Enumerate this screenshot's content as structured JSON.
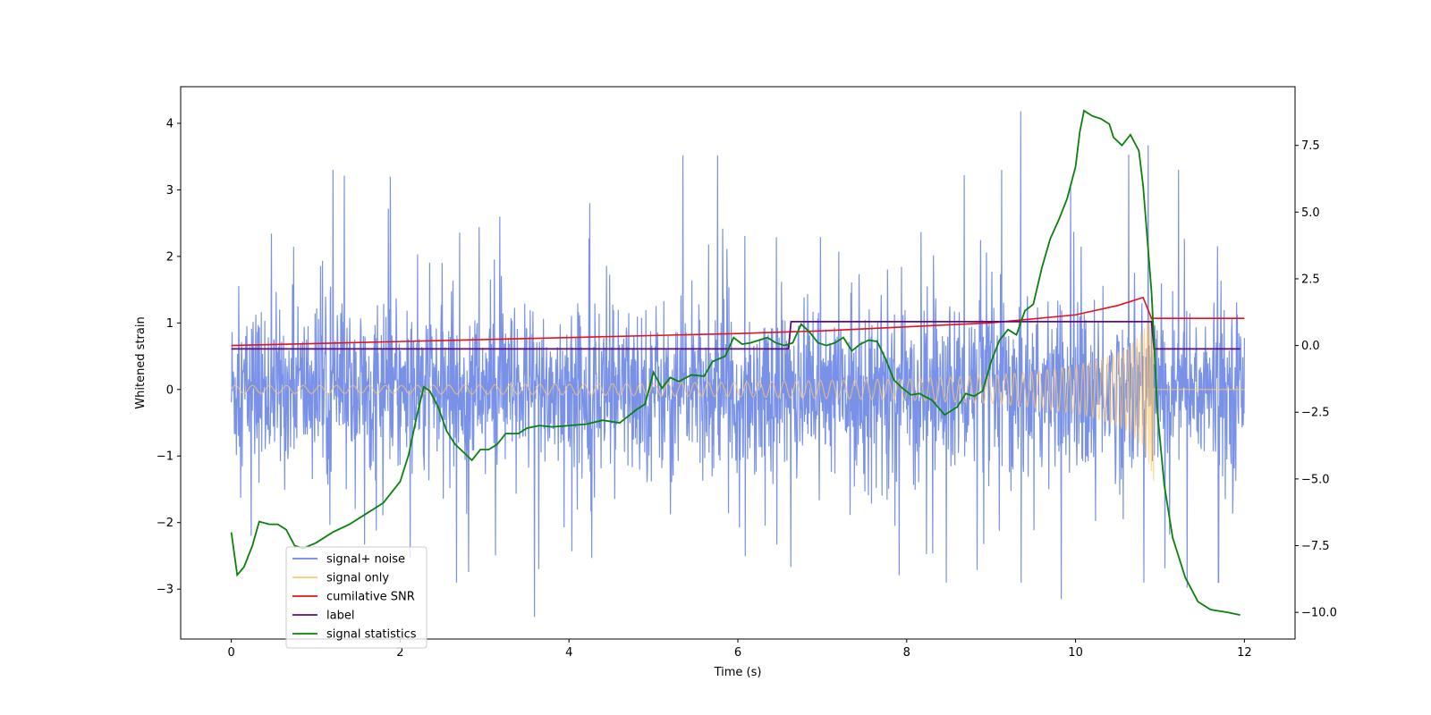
{
  "chart_data": {
    "type": "line",
    "title": "",
    "xlabel": "Time (s)",
    "ylabel": "Whitened strain",
    "y2label": "",
    "xlim": [
      -0.6,
      12.6
    ],
    "ylim": [
      -3.75,
      4.55
    ],
    "y2lim": [
      -11.0,
      9.7
    ],
    "xticks": [
      0,
      2,
      4,
      6,
      8,
      10,
      12
    ],
    "xtick_labels": [
      "0",
      "2",
      "4",
      "6",
      "8",
      "10",
      "12"
    ],
    "yticks": [
      -3,
      -2,
      -1,
      0,
      1,
      2,
      3,
      4
    ],
    "ytick_labels": [
      "−3",
      "−2",
      "−1",
      "0",
      "1",
      "2",
      "3",
      "4"
    ],
    "y2ticks": [
      -10.0,
      -7.5,
      -5.0,
      -2.5,
      0.0,
      2.5,
      5.0,
      7.5
    ],
    "y2tick_labels": [
      "−10.0",
      "−7.5",
      "−5.0",
      "−2.5",
      "0.0",
      "2.5",
      "5.0",
      "7.5"
    ],
    "grid": false,
    "legend_position": "lower-left",
    "legend": [
      {
        "label": "signal+ noise",
        "color": "#6a86e6"
      },
      {
        "label": "signal only",
        "color": "#ffc866"
      },
      {
        "label": "cumilative SNR",
        "color": "#e8101e"
      },
      {
        "label": "label",
        "color": "#5c0d82"
      },
      {
        "label": "signal statistics",
        "color": "#0a820a"
      }
    ],
    "series": [
      {
        "name": "signal+ noise",
        "axis": "left",
        "color": "#6a86e6",
        "x_range": [
          0,
          12
        ],
        "noise_sigma": 1.0,
        "peaks": [
          {
            "x": 9.35,
            "y": 4.18
          },
          {
            "x": 10.86,
            "y": 3.67
          },
          {
            "x": 10.63,
            "y": 3.53
          },
          {
            "x": 5.35,
            "y": 3.52
          },
          {
            "x": 5.76,
            "y": 3.52
          },
          {
            "x": 3.59,
            "y": -3.42
          },
          {
            "x": 11.32,
            "y": -2.98
          },
          {
            "x": 9.83,
            "y": -3.15
          }
        ]
      },
      {
        "name": "signal only",
        "axis": "left",
        "color": "#ffc866",
        "x_range": [
          0,
          12
        ],
        "merger_time": 10.93,
        "envelope_points": [
          [
            0.0,
            0.06
          ],
          [
            2.0,
            0.06
          ],
          [
            4.0,
            0.08
          ],
          [
            6.0,
            0.11
          ],
          [
            8.0,
            0.16
          ],
          [
            9.0,
            0.21
          ],
          [
            9.5,
            0.27
          ],
          [
            10.0,
            0.36
          ],
          [
            10.4,
            0.5
          ],
          [
            10.6,
            0.62
          ],
          [
            10.8,
            0.86
          ],
          [
            10.9,
            1.25
          ],
          [
            10.93,
            1.55
          ]
        ]
      },
      {
        "name": "cumilative SNR",
        "axis": "right",
        "color": "#e8101e",
        "points": [
          [
            0.0,
            0.0
          ],
          [
            2.0,
            0.15
          ],
          [
            4.0,
            0.3
          ],
          [
            6.0,
            0.45
          ],
          [
            7.0,
            0.55
          ],
          [
            8.0,
            0.7
          ],
          [
            9.0,
            0.85
          ],
          [
            10.0,
            1.15
          ],
          [
            10.5,
            1.5
          ],
          [
            10.8,
            1.8
          ],
          [
            10.9,
            1.02
          ],
          [
            11.5,
            1.02
          ],
          [
            12.0,
            1.02
          ]
        ]
      },
      {
        "name": "label",
        "axis": "left",
        "color": "#5c0d82",
        "points": [
          [
            0.0,
            0.61
          ],
          [
            6.6,
            0.61
          ],
          [
            6.63,
            1.02
          ],
          [
            10.9,
            1.02
          ],
          [
            10.93,
            0.61
          ],
          [
            11.95,
            0.61
          ]
        ]
      },
      {
        "name": "signal statistics",
        "axis": "right",
        "color": "#0a820a",
        "points": [
          [
            0.0,
            -7.0
          ],
          [
            0.07,
            -8.6
          ],
          [
            0.15,
            -8.3
          ],
          [
            0.25,
            -7.5
          ],
          [
            0.33,
            -6.6
          ],
          [
            0.45,
            -6.7
          ],
          [
            0.55,
            -6.7
          ],
          [
            0.65,
            -6.9
          ],
          [
            0.75,
            -7.5
          ],
          [
            0.85,
            -7.6
          ],
          [
            1.0,
            -7.4
          ],
          [
            1.2,
            -7.0
          ],
          [
            1.4,
            -6.7
          ],
          [
            1.6,
            -6.3
          ],
          [
            1.8,
            -5.9
          ],
          [
            2.0,
            -5.1
          ],
          [
            2.1,
            -4.1
          ],
          [
            2.2,
            -2.6
          ],
          [
            2.28,
            -1.55
          ],
          [
            2.35,
            -1.7
          ],
          [
            2.45,
            -2.3
          ],
          [
            2.55,
            -3.2
          ],
          [
            2.65,
            -3.7
          ],
          [
            2.75,
            -4.0
          ],
          [
            2.85,
            -4.3
          ],
          [
            2.95,
            -3.9
          ],
          [
            3.05,
            -3.9
          ],
          [
            3.15,
            -3.7
          ],
          [
            3.25,
            -3.3
          ],
          [
            3.4,
            -3.3
          ],
          [
            3.5,
            -3.1
          ],
          [
            3.65,
            -3.0
          ],
          [
            3.8,
            -3.05
          ],
          [
            4.0,
            -3.0
          ],
          [
            4.2,
            -2.95
          ],
          [
            4.4,
            -2.8
          ],
          [
            4.6,
            -2.9
          ],
          [
            4.8,
            -2.4
          ],
          [
            4.9,
            -2.2
          ],
          [
            5.0,
            -1.0
          ],
          [
            5.1,
            -1.6
          ],
          [
            5.2,
            -1.2
          ],
          [
            5.3,
            -1.35
          ],
          [
            5.45,
            -1.1
          ],
          [
            5.6,
            -1.15
          ],
          [
            5.7,
            -0.6
          ],
          [
            5.85,
            -0.4
          ],
          [
            5.95,
            0.3
          ],
          [
            6.05,
            0.05
          ],
          [
            6.15,
            0.1
          ],
          [
            6.25,
            0.2
          ],
          [
            6.35,
            0.3
          ],
          [
            6.45,
            0.1
          ],
          [
            6.55,
            0.0
          ],
          [
            6.65,
            0.1
          ],
          [
            6.75,
            0.8
          ],
          [
            6.85,
            0.5
          ],
          [
            6.95,
            0.1
          ],
          [
            7.05,
            0.0
          ],
          [
            7.15,
            0.1
          ],
          [
            7.25,
            0.3
          ],
          [
            7.35,
            -0.2
          ],
          [
            7.45,
            0.05
          ],
          [
            7.55,
            0.2
          ],
          [
            7.65,
            0.15
          ],
          [
            7.75,
            -0.5
          ],
          [
            7.85,
            -1.3
          ],
          [
            7.95,
            -1.6
          ],
          [
            8.05,
            -1.85
          ],
          [
            8.15,
            -1.8
          ],
          [
            8.3,
            -2.05
          ],
          [
            8.45,
            -2.6
          ],
          [
            8.6,
            -2.3
          ],
          [
            8.7,
            -1.8
          ],
          [
            8.8,
            -1.9
          ],
          [
            8.9,
            -1.7
          ],
          [
            9.0,
            -0.6
          ],
          [
            9.1,
            0.2
          ],
          [
            9.2,
            0.6
          ],
          [
            9.3,
            0.4
          ],
          [
            9.4,
            1.3
          ],
          [
            9.5,
            1.55
          ],
          [
            9.6,
            2.9
          ],
          [
            9.7,
            4.0
          ],
          [
            9.8,
            4.7
          ],
          [
            9.9,
            5.5
          ],
          [
            10.0,
            6.7
          ],
          [
            10.05,
            8.0
          ],
          [
            10.1,
            8.8
          ],
          [
            10.2,
            8.6
          ],
          [
            10.3,
            8.5
          ],
          [
            10.4,
            8.3
          ],
          [
            10.45,
            7.8
          ],
          [
            10.55,
            7.5
          ],
          [
            10.65,
            7.9
          ],
          [
            10.75,
            7.3
          ],
          [
            10.8,
            6.0
          ],
          [
            10.9,
            2.0
          ],
          [
            10.97,
            -2.5
          ],
          [
            11.05,
            -5.2
          ],
          [
            11.15,
            -7.2
          ],
          [
            11.3,
            -8.7
          ],
          [
            11.45,
            -9.6
          ],
          [
            11.6,
            -9.9
          ],
          [
            11.8,
            -10.0
          ],
          [
            11.95,
            -10.1
          ]
        ]
      }
    ]
  }
}
